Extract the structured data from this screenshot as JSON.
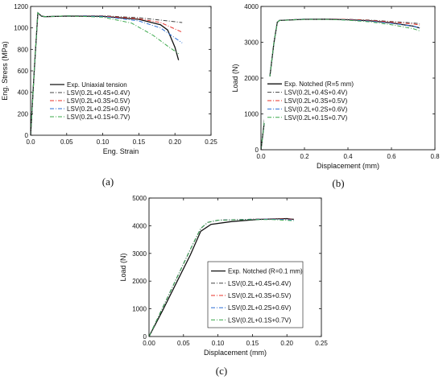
{
  "chart_data": [
    {
      "type": "line",
      "panel_label": "(a)",
      "xlabel": "Eng. Strain",
      "ylabel": "Eng. Stress (MPa)",
      "xlim": [
        0,
        0.25
      ],
      "ylim": [
        0,
        1200
      ],
      "xticks": [
        0.0,
        0.05,
        0.1,
        0.15,
        0.2,
        0.25
      ],
      "xtick_labels": [
        "0.0",
        "0.05",
        "0.10",
        "0.15",
        "0.20",
        "0.25"
      ],
      "yticks": [
        0,
        200,
        400,
        600,
        800,
        1000,
        1200
      ],
      "ytick_labels": [
        "0",
        "200",
        "400",
        "600",
        "800",
        "1000",
        "1200"
      ],
      "legend_position": "left",
      "series": [
        {
          "name": "Exp. Uniaxial tension",
          "color": "#111111",
          "dash": "solid",
          "x": [
            0,
            0.005,
            0.01,
            0.015,
            0.02,
            0.05,
            0.1,
            0.15,
            0.18,
            0.19,
            0.2,
            0.205
          ],
          "y": [
            0,
            600,
            1140,
            1110,
            1105,
            1110,
            1108,
            1080,
            1030,
            980,
            820,
            700
          ]
        },
        {
          "name": "LSV(0.2L+0.4S+0.4V)",
          "color": "#444444",
          "dash": "dashdot",
          "x": [
            0,
            0.005,
            0.01,
            0.015,
            0.02,
            0.05,
            0.1,
            0.15,
            0.21
          ],
          "y": [
            0,
            600,
            1140,
            1108,
            1105,
            1112,
            1113,
            1095,
            1050
          ]
        },
        {
          "name": "LSV(0.2L+0.3S+0.5V)",
          "color": "#e8312a",
          "dash": "dashdot",
          "x": [
            0,
            0.005,
            0.01,
            0.015,
            0.02,
            0.05,
            0.1,
            0.15,
            0.18,
            0.21
          ],
          "y": [
            0,
            600,
            1140,
            1108,
            1105,
            1112,
            1110,
            1085,
            1050,
            960
          ]
        },
        {
          "name": "LSV(0.2L+0.2S+0.6V)",
          "color": "#2b6fd6",
          "dash": "dashdot",
          "x": [
            0,
            0.005,
            0.01,
            0.015,
            0.02,
            0.05,
            0.1,
            0.15,
            0.18,
            0.21
          ],
          "y": [
            0,
            600,
            1140,
            1108,
            1105,
            1112,
            1108,
            1065,
            1000,
            860
          ]
        },
        {
          "name": "LSV(0.2L+0.1S+0.7V)",
          "color": "#3aa84a",
          "dash": "dashdot",
          "x": [
            0,
            0.005,
            0.01,
            0.015,
            0.02,
            0.05,
            0.1,
            0.14,
            0.17,
            0.19,
            0.205
          ],
          "y": [
            0,
            600,
            1140,
            1108,
            1105,
            1112,
            1100,
            1045,
            930,
            830,
            760
          ]
        }
      ]
    },
    {
      "type": "line",
      "panel_label": "(b)",
      "xlabel": "Displacement (mm)",
      "ylabel": "Load (N)",
      "xlim": [
        0,
        0.8
      ],
      "ylim": [
        0,
        4000
      ],
      "xticks": [
        0,
        0.2,
        0.4,
        0.6,
        0.8
      ],
      "xtick_labels": [
        "0.0",
        "0.2",
        "0.4",
        "0.6",
        "0.8"
      ],
      "yticks": [
        0,
        1000,
        2000,
        3000,
        4000
      ],
      "ytick_labels": [
        "0",
        "1000",
        "2000",
        "3000",
        "4000"
      ],
      "legend_position": "bottom-left",
      "series": [
        {
          "name": "Exp. Notched (R=5 mm)",
          "color": "#111111",
          "dash": "solid",
          "x": [
            0,
            0.06,
            0.075,
            0.085,
            0.2,
            0.3,
            0.4,
            0.5,
            0.6,
            0.7,
            0.73
          ],
          "y": [
            0,
            3000,
            3560,
            3610,
            3640,
            3645,
            3630,
            3600,
            3540,
            3450,
            3400
          ]
        },
        {
          "name": "LSV(0.2L+0.4S+0.4V)",
          "color": "#444444",
          "dash": "dashdot",
          "x": [
            0,
            0.06,
            0.075,
            0.085,
            0.2,
            0.3,
            0.4,
            0.5,
            0.6,
            0.7,
            0.73
          ],
          "y": [
            0,
            3000,
            3560,
            3610,
            3645,
            3650,
            3640,
            3620,
            3580,
            3540,
            3520
          ]
        },
        {
          "name": "LSV(0.2L+0.3S+0.5V)",
          "color": "#e8312a",
          "dash": "dashdot",
          "x": [
            0,
            0.06,
            0.075,
            0.085,
            0.2,
            0.3,
            0.4,
            0.5,
            0.6,
            0.7,
            0.73
          ],
          "y": [
            0,
            3000,
            3560,
            3610,
            3645,
            3650,
            3635,
            3610,
            3565,
            3510,
            3480
          ]
        },
        {
          "name": "LSV(0.2L+0.2S+0.6V)",
          "color": "#2b6fd6",
          "dash": "dashdot",
          "x": [
            0,
            0.06,
            0.075,
            0.085,
            0.2,
            0.3,
            0.4,
            0.5,
            0.6,
            0.7,
            0.73
          ],
          "y": [
            0,
            3000,
            3560,
            3610,
            3645,
            3645,
            3625,
            3590,
            3530,
            3450,
            3400
          ]
        },
        {
          "name": "LSV(0.2L+0.1S+0.7V)",
          "color": "#3aa84a",
          "dash": "dashdot",
          "x": [
            0,
            0.06,
            0.075,
            0.085,
            0.2,
            0.3,
            0.4,
            0.5,
            0.6,
            0.7,
            0.73
          ],
          "y": [
            0,
            3000,
            3560,
            3610,
            3640,
            3640,
            3615,
            3570,
            3490,
            3380,
            3320
          ]
        }
      ]
    },
    {
      "type": "line",
      "panel_label": "(c)",
      "xlabel": "Displacement (mm)",
      "ylabel": "Load (N)",
      "xlim": [
        0,
        0.25
      ],
      "ylim": [
        0,
        5000
      ],
      "xticks": [
        0,
        0.05,
        0.1,
        0.15,
        0.2,
        0.25
      ],
      "xtick_labels": [
        "0.00",
        "0.05",
        "0.10",
        "0.15",
        "0.20",
        "0.25"
      ],
      "yticks": [
        0,
        1000,
        2000,
        3000,
        4000,
        5000
      ],
      "ytick_labels": [
        "0",
        "1000",
        "2000",
        "3000",
        "4000",
        "5000"
      ],
      "legend_position": "right",
      "series": [
        {
          "name": "Exp. Notched (R=0.1 mm)",
          "color": "#111111",
          "dash": "solid",
          "x": [
            0,
            0.02,
            0.04,
            0.06,
            0.075,
            0.09,
            0.12,
            0.16,
            0.2,
            0.21
          ],
          "y": [
            0,
            950,
            1950,
            2950,
            3800,
            4050,
            4150,
            4230,
            4260,
            4230
          ]
        },
        {
          "name": "LSV(0.2L+0.4S+0.4V)",
          "color": "#444444",
          "dash": "dashdot",
          "x": [
            0,
            0.02,
            0.04,
            0.06,
            0.075,
            0.085,
            0.1,
            0.14,
            0.18,
            0.21
          ],
          "y": [
            0,
            1050,
            2100,
            3150,
            3900,
            4120,
            4200,
            4230,
            4250,
            4240
          ]
        },
        {
          "name": "LSV(0.2L+0.3S+0.5V)",
          "color": "#e8312a",
          "dash": "dashdot",
          "x": [
            0,
            0.02,
            0.04,
            0.06,
            0.075,
            0.085,
            0.1,
            0.14,
            0.18,
            0.21
          ],
          "y": [
            0,
            1050,
            2100,
            3150,
            3900,
            4120,
            4200,
            4230,
            4250,
            4230
          ]
        },
        {
          "name": "LSV(0.2L+0.2S+0.6V)",
          "color": "#2b6fd6",
          "dash": "dashdot",
          "x": [
            0,
            0.02,
            0.04,
            0.06,
            0.075,
            0.085,
            0.1,
            0.14,
            0.18,
            0.21
          ],
          "y": [
            0,
            1050,
            2100,
            3150,
            3900,
            4120,
            4200,
            4230,
            4240,
            4210
          ]
        },
        {
          "name": "LSV(0.2L+0.1S+0.7V)",
          "color": "#3aa84a",
          "dash": "dashdot",
          "x": [
            0,
            0.02,
            0.04,
            0.06,
            0.075,
            0.085,
            0.1,
            0.14,
            0.18,
            0.21
          ],
          "y": [
            0,
            1050,
            2100,
            3150,
            3900,
            4120,
            4200,
            4220,
            4220,
            4180
          ]
        }
      ]
    }
  ]
}
